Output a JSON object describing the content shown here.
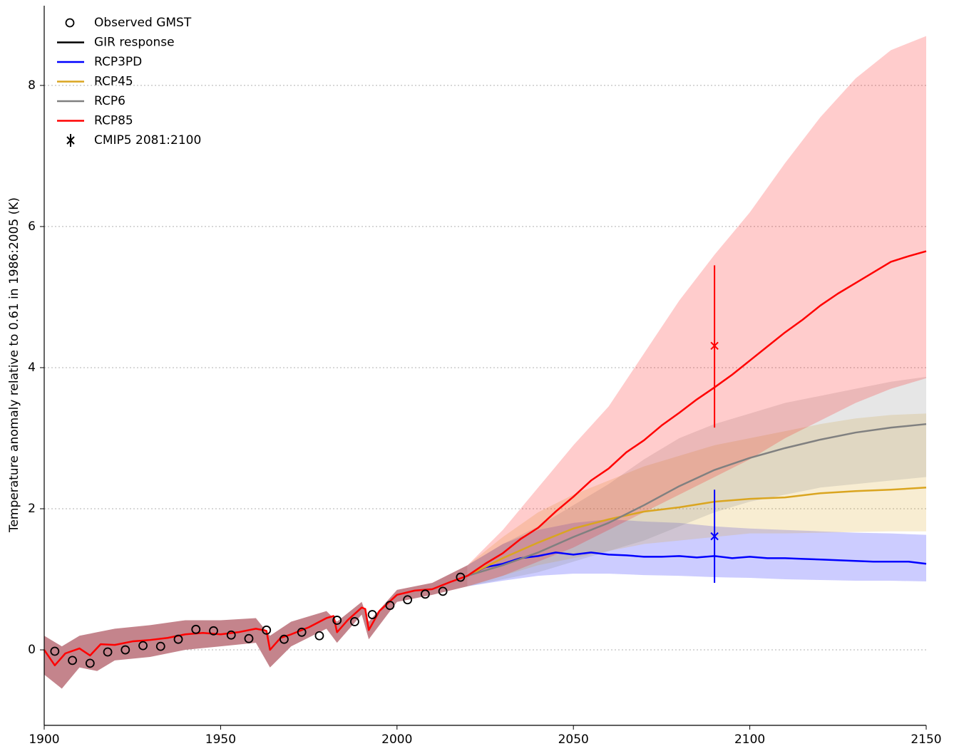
{
  "chart_data": {
    "type": "line",
    "y_label": "Temperature anomaly relative to 0.61 in 1986:2005 (K)",
    "xlim": [
      1900,
      2150
    ],
    "ylim": [
      -1.07,
      9.13
    ],
    "xticks": [
      1900,
      1950,
      2000,
      2050,
      2100,
      2150
    ],
    "yticks": [
      0,
      2,
      4,
      6,
      8
    ],
    "grid": true,
    "legend": "upper-left",
    "observed": {
      "name": "Observed GMST",
      "color": "#000000",
      "x": [
        1903,
        1908,
        1913,
        1918,
        1923,
        1928,
        1933,
        1938,
        1943,
        1948,
        1953,
        1958,
        1963,
        1968,
        1973,
        1978,
        1983,
        1988,
        1993,
        1998,
        2003,
        2008,
        2013,
        2018
      ],
      "values": [
        -0.02,
        -0.15,
        -0.19,
        -0.03,
        0.0,
        0.06,
        0.05,
        0.15,
        0.29,
        0.27,
        0.21,
        0.16,
        0.28,
        0.15,
        0.25,
        0.2,
        0.42,
        0.4,
        0.5,
        0.63,
        0.71,
        0.79,
        0.83,
        1.03
      ]
    },
    "gir_response": {
      "name": "GIR response",
      "color": "#000000"
    },
    "historical_band": {
      "color": "#c4848c",
      "x": [
        1900,
        1905,
        1910,
        1915,
        1920,
        1930,
        1940,
        1950,
        1960,
        1964,
        1970,
        1980,
        1983,
        1990,
        1992,
        2000,
        2010,
        2020
      ],
      "lower": [
        -0.35,
        -0.55,
        -0.25,
        -0.3,
        -0.15,
        -0.1,
        0.0,
        0.05,
        0.1,
        -0.25,
        0.05,
        0.3,
        0.1,
        0.5,
        0.15,
        0.68,
        0.78,
        0.9
      ],
      "upper": [
        0.2,
        0.05,
        0.2,
        0.25,
        0.3,
        0.35,
        0.42,
        0.42,
        0.45,
        0.2,
        0.4,
        0.55,
        0.4,
        0.68,
        0.4,
        0.85,
        0.95,
        1.2
      ]
    },
    "series": [
      {
        "name": "RCP3PD",
        "color": "#0000ff",
        "x": [
          2020,
          2025,
          2030,
          2035,
          2040,
          2045,
          2050,
          2055,
          2060,
          2065,
          2070,
          2075,
          2080,
          2085,
          2090,
          2095,
          2100,
          2105,
          2110,
          2115,
          2120,
          2125,
          2130,
          2135,
          2140,
          2145,
          2150
        ],
        "values": [
          1.05,
          1.17,
          1.22,
          1.3,
          1.33,
          1.38,
          1.35,
          1.38,
          1.35,
          1.34,
          1.32,
          1.32,
          1.33,
          1.31,
          1.33,
          1.3,
          1.32,
          1.3,
          1.3,
          1.29,
          1.28,
          1.27,
          1.26,
          1.25,
          1.25,
          1.25,
          1.22
        ],
        "band_x": [
          2020,
          2030,
          2040,
          2050,
          2060,
          2070,
          2080,
          2090,
          2100,
          2110,
          2120,
          2130,
          2140,
          2150
        ],
        "band_lower": [
          0.9,
          0.98,
          1.05,
          1.08,
          1.08,
          1.06,
          1.05,
          1.03,
          1.02,
          1.0,
          0.99,
          0.98,
          0.98,
          0.97
        ],
        "band_upper": [
          1.2,
          1.5,
          1.7,
          1.8,
          1.85,
          1.82,
          1.8,
          1.75,
          1.72,
          1.7,
          1.68,
          1.66,
          1.65,
          1.63
        ]
      },
      {
        "name": "RCP45",
        "color": "#daa520",
        "x": [
          2020,
          2030,
          2040,
          2050,
          2060,
          2070,
          2080,
          2090,
          2100,
          2110,
          2120,
          2130,
          2140,
          2150
        ],
        "values": [
          1.05,
          1.3,
          1.52,
          1.72,
          1.85,
          1.96,
          2.02,
          2.1,
          2.14,
          2.16,
          2.22,
          2.25,
          2.27,
          2.3
        ],
        "band_x": [
          2020,
          2030,
          2040,
          2050,
          2060,
          2070,
          2080,
          2090,
          2100,
          2110,
          2120,
          2130,
          2140,
          2150
        ],
        "band_lower": [
          0.9,
          1.05,
          1.2,
          1.3,
          1.4,
          1.5,
          1.55,
          1.6,
          1.65,
          1.65,
          1.66,
          1.67,
          1.68,
          1.68
        ],
        "band_upper": [
          1.2,
          1.6,
          1.95,
          2.2,
          2.4,
          2.6,
          2.75,
          2.9,
          3.0,
          3.1,
          3.2,
          3.28,
          3.33,
          3.35
        ]
      },
      {
        "name": "RCP6",
        "color": "#808080",
        "x": [
          2020,
          2030,
          2040,
          2050,
          2060,
          2070,
          2080,
          2090,
          2100,
          2110,
          2120,
          2130,
          2140,
          2150
        ],
        "values": [
          1.05,
          1.2,
          1.38,
          1.6,
          1.8,
          2.05,
          2.32,
          2.55,
          2.72,
          2.86,
          2.98,
          3.08,
          3.15,
          3.2
        ],
        "band_x": [
          2020,
          2030,
          2040,
          2050,
          2060,
          2070,
          2080,
          2090,
          2100,
          2110,
          2120,
          2130,
          2140,
          2150
        ],
        "band_lower": [
          0.9,
          1.0,
          1.1,
          1.25,
          1.4,
          1.55,
          1.75,
          1.95,
          2.1,
          2.2,
          2.3,
          2.35,
          2.4,
          2.45
        ],
        "band_upper": [
          1.2,
          1.5,
          1.75,
          2.05,
          2.35,
          2.7,
          3.0,
          3.2,
          3.35,
          3.5,
          3.6,
          3.7,
          3.8,
          3.87
        ]
      },
      {
        "name": "RCP85",
        "color": "#ff0000",
        "x": [
          1900,
          1903,
          1906,
          1910,
          1913,
          1916,
          1920,
          1925,
          1930,
          1935,
          1940,
          1945,
          1950,
          1955,
          1960,
          1963,
          1964,
          1967,
          1970,
          1975,
          1980,
          1982,
          1983,
          1986,
          1990,
          1991,
          1992,
          1995,
          2000,
          2005,
          2010,
          2015,
          2020,
          2025,
          2030,
          2035,
          2040,
          2045,
          2050,
          2055,
          2060,
          2065,
          2070,
          2075,
          2080,
          2085,
          2090,
          2095,
          2100,
          2105,
          2110,
          2115,
          2120,
          2125,
          2130,
          2135,
          2140,
          2145,
          2150
        ],
        "values": [
          0.0,
          -0.22,
          -0.05,
          0.02,
          -0.08,
          0.08,
          0.07,
          0.12,
          0.14,
          0.17,
          0.22,
          0.24,
          0.22,
          0.25,
          0.3,
          0.27,
          0.0,
          0.17,
          0.22,
          0.32,
          0.45,
          0.48,
          0.25,
          0.42,
          0.6,
          0.58,
          0.28,
          0.55,
          0.78,
          0.84,
          0.86,
          0.96,
          1.05,
          1.22,
          1.37,
          1.57,
          1.73,
          1.96,
          2.17,
          2.4,
          2.57,
          2.8,
          2.97,
          3.18,
          3.36,
          3.55,
          3.72,
          3.9,
          4.1,
          4.3,
          4.5,
          4.68,
          4.88,
          5.05,
          5.2,
          5.35,
          5.5,
          5.58,
          5.65
        ],
        "band_x": [
          2020,
          2030,
          2040,
          2050,
          2060,
          2070,
          2080,
          2090,
          2100,
          2110,
          2120,
          2130,
          2140,
          2150
        ],
        "band_lower": [
          0.9,
          1.05,
          1.25,
          1.45,
          1.7,
          1.95,
          2.2,
          2.45,
          2.7,
          3.0,
          3.25,
          3.5,
          3.7,
          3.85
        ],
        "band_upper": [
          1.2,
          1.7,
          2.3,
          2.9,
          3.45,
          4.2,
          4.95,
          5.6,
          6.2,
          6.9,
          7.55,
          8.1,
          8.5,
          8.7
        ]
      }
    ],
    "cmip5": {
      "name": "CMIP5 2081:2100",
      "points": [
        {
          "x": 2090,
          "value": 4.31,
          "low": 3.15,
          "high": 5.45,
          "color": "#ff0000"
        },
        {
          "x": 2090,
          "value": 1.61,
          "low": 0.95,
          "high": 2.27,
          "color": "#0000ff"
        }
      ]
    }
  }
}
